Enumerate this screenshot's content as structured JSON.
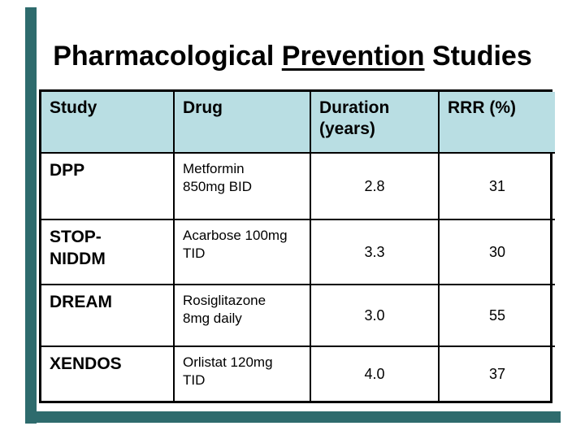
{
  "slide": {
    "title": {
      "prefix": "Pharmacological ",
      "underlined_word": "Prevention",
      "suffix": " Studies"
    },
    "colors": {
      "accent_teal": "#2E6B6D",
      "header_bg": "#B9DEE3",
      "table_border": "#000000"
    }
  },
  "table": {
    "headers": {
      "study": "Study",
      "drug": "Drug",
      "duration": "Duration\n(years)",
      "rrr": "RRR (%)"
    },
    "rows": [
      {
        "study": "DPP",
        "drug": "Metformin\n850mg BID",
        "duration": "2.8",
        "rrr": "31"
      },
      {
        "study": "STOP-\nNIDDM",
        "drug": "Acarbose 100mg\nTID",
        "duration": "3.3",
        "rrr": "30"
      },
      {
        "study": "DREAM",
        "drug": "Rosiglitazone\n8mg daily",
        "duration": "3.0",
        "rrr": "55"
      },
      {
        "study": "XENDOS",
        "drug": "Orlistat 120mg\nTID",
        "duration": "4.0",
        "rrr": "37"
      }
    ]
  }
}
